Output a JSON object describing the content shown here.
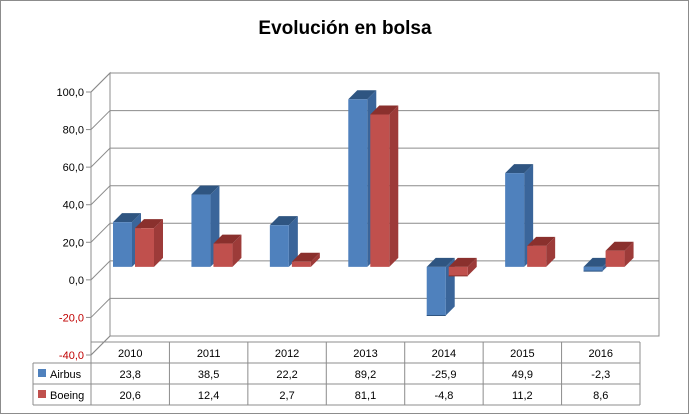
{
  "chart_data": {
    "type": "bar",
    "title": "Evolución en bolsa",
    "categories": [
      "2010",
      "2011",
      "2012",
      "2013",
      "2014",
      "2015",
      "2016"
    ],
    "series": [
      {
        "name": "Airbus",
        "values": [
          23.8,
          38.5,
          22.2,
          89.2,
          -25.9,
          49.9,
          -2.3
        ],
        "color": "#4f81bd",
        "color_dark": "#2f5581",
        "color_side": "#3a659a"
      },
      {
        "name": "Boeing",
        "values": [
          20.6,
          12.4,
          2.7,
          81.1,
          -4.8,
          11.2,
          8.6
        ],
        "color": "#c0504d",
        "color_dark": "#8a302d",
        "color_side": "#9d3b39"
      }
    ],
    "value_labels": {
      "Airbus": [
        "23,8",
        "38,5",
        "22,2",
        "89,2",
        "-25,9",
        "49,9",
        "-2,3"
      ],
      "Boeing": [
        "20,6",
        "12,4",
        "2,7",
        "81,1",
        "-4,8",
        "11,2",
        "8,6"
      ]
    },
    "yticks": [
      100,
      80,
      60,
      40,
      20,
      0,
      -20,
      -40
    ],
    "ytick_labels": [
      "100,0",
      "80,0",
      "60,0",
      "40,0",
      "20,0",
      "0,0",
      "-20,0",
      "-40,0"
    ],
    "ylim": [
      -40,
      100
    ],
    "grid": true,
    "legend": "data-table",
    "xlabel": "",
    "ylabel": ""
  }
}
